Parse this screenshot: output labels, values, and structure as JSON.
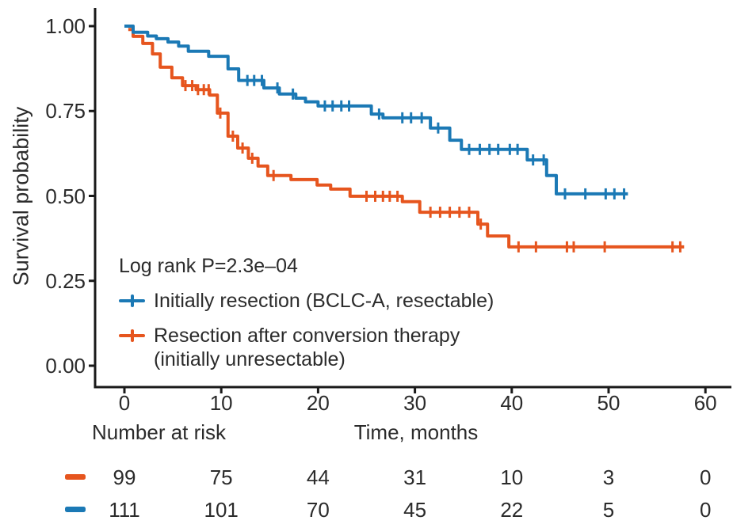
{
  "figure": {
    "background": "#ffffff",
    "text_color": "#2b2b2b",
    "axis_color": "#1a1a1a"
  },
  "chart_data": {
    "type": "line",
    "subtype": "kaplan-meier-step",
    "title": "",
    "xlabel": "Time, months",
    "ylabel": "Survival probability",
    "xlim": [
      0,
      63
    ],
    "ylim": [
      0,
      1
    ],
    "grid": false,
    "legend_position": "inside-lower-left",
    "annotation": "Log rank P=2.3e–04",
    "x_ticks": [
      0,
      10,
      20,
      30,
      40,
      50,
      60
    ],
    "y_ticks": [
      {
        "value": 1.0,
        "label": "1.00"
      },
      {
        "value": 0.75,
        "label": "0.75"
      },
      {
        "value": 0.5,
        "label": "0.50"
      },
      {
        "value": 0.25,
        "label": "0.25"
      },
      {
        "value": 0.0,
        "label": "0.00"
      }
    ],
    "series": [
      {
        "name": "Initially resection (BCLC-A, resectable)",
        "legend_lines": [
          "Initially resection (BCLC-A, resectable)"
        ],
        "color": "#1B79B5",
        "steps": [
          [
            0,
            1.0
          ],
          [
            0.9,
            0.982
          ],
          [
            2.4,
            0.971
          ],
          [
            3.3,
            0.963
          ],
          [
            4.5,
            0.953
          ],
          [
            5.6,
            0.941
          ],
          [
            6.6,
            0.926
          ],
          [
            8.7,
            0.911
          ],
          [
            10.7,
            0.874
          ],
          [
            11.8,
            0.84
          ],
          [
            14.4,
            0.818
          ],
          [
            16,
            0.8
          ],
          [
            17.7,
            0.788
          ],
          [
            18.7,
            0.777
          ],
          [
            20,
            0.765
          ],
          [
            25.5,
            0.741
          ],
          [
            26.7,
            0.73
          ],
          [
            31.6,
            0.7
          ],
          [
            33.6,
            0.664
          ],
          [
            34.8,
            0.637
          ],
          [
            41.6,
            0.606
          ],
          [
            43.6,
            0.56
          ],
          [
            44.6,
            0.506
          ]
        ],
        "end_time": 52,
        "censor_times": [
          12.7,
          13.4,
          14.2,
          15.8,
          17.4,
          20.7,
          21.5,
          22.4,
          23.2,
          26.3,
          28.7,
          29.6,
          30.7,
          32.4,
          35.6,
          36.7,
          37.7,
          38.6,
          39.8,
          40.6,
          42.2,
          43.3,
          45.5,
          47.6,
          49.7,
          50.6,
          51.6
        ]
      },
      {
        "name": "Resection after conversion therapy (initially unresectable)",
        "legend_lines": [
          "Resection after conversion therapy",
          "(initially unresectable)"
        ],
        "color": "#E6551E",
        "steps": [
          [
            0.4,
            0.99
          ],
          [
            0.9,
            0.97
          ],
          [
            1.9,
            0.949
          ],
          [
            2.9,
            0.918
          ],
          [
            3.7,
            0.879
          ],
          [
            4.9,
            0.848
          ],
          [
            6,
            0.825
          ],
          [
            7.4,
            0.813
          ],
          [
            8.8,
            0.797
          ],
          [
            9.6,
            0.744
          ],
          [
            10.7,
            0.676
          ],
          [
            11.7,
            0.641
          ],
          [
            12.8,
            0.611
          ],
          [
            13.8,
            0.588
          ],
          [
            14.8,
            0.56
          ],
          [
            17.2,
            0.548
          ],
          [
            19.9,
            0.532
          ],
          [
            21.3,
            0.52
          ],
          [
            23.3,
            0.499
          ],
          [
            28.7,
            0.483
          ],
          [
            30.5,
            0.452
          ],
          [
            36.5,
            0.417
          ],
          [
            37.5,
            0.382
          ],
          [
            39.7,
            0.35
          ]
        ],
        "end_time": 57.8,
        "censor_times": [
          6.3,
          7,
          7.6,
          8.2,
          8.7,
          9.9,
          11.2,
          12.2,
          13.2,
          15.4,
          25,
          25.9,
          26.7,
          27.4,
          28.2,
          31.6,
          32.6,
          33.6,
          34.6,
          35.6,
          36.8,
          40.7,
          42.5,
          45.7,
          46.4,
          49.6,
          56.6,
          57.4
        ]
      }
    ]
  },
  "legend": {
    "p_value_label": "Log rank P=2.3e–04"
  },
  "risk_table": {
    "title": "Number at risk",
    "times": [
      0,
      10,
      20,
      30,
      40,
      50,
      60
    ],
    "rows": [
      {
        "group": "Resection after conversion therapy (initially unresectable)",
        "color": "#E6551E",
        "counts": [
          99,
          75,
          44,
          31,
          10,
          3,
          0
        ]
      },
      {
        "group": "Initially resection (BCLC-A, resectable)",
        "color": "#1B79B5",
        "counts": [
          111,
          101,
          70,
          45,
          22,
          5,
          0
        ]
      }
    ]
  }
}
